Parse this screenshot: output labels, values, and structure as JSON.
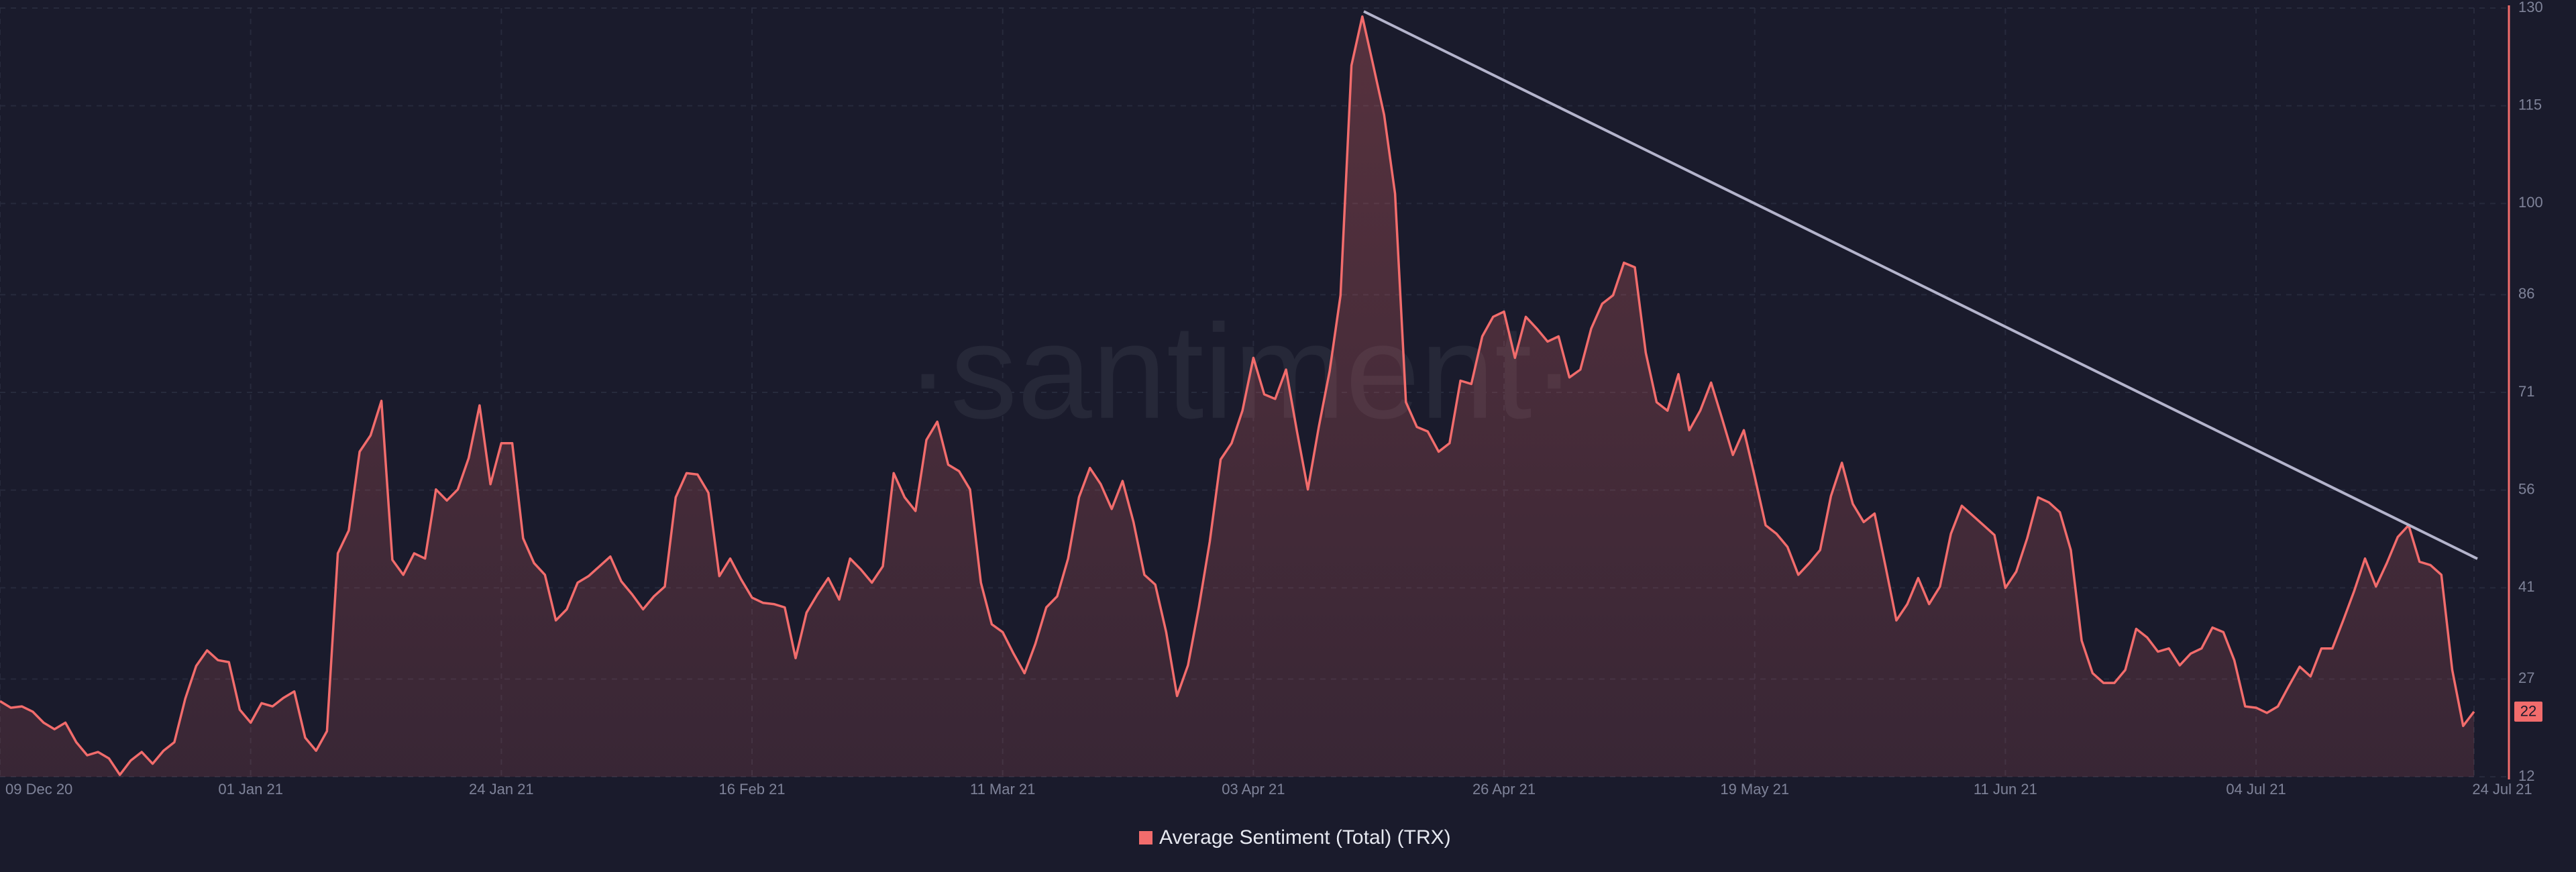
{
  "chart_data": {
    "type": "area",
    "watermark": "·santiment·",
    "categories": [
      "09 Dec 20",
      null,
      null,
      null,
      null,
      null,
      null,
      null,
      null,
      null,
      null,
      null,
      null,
      null,
      null,
      null,
      null,
      null,
      null,
      null,
      null,
      null,
      null,
      "01 Jan 21",
      null,
      null,
      null,
      null,
      null,
      null,
      null,
      null,
      null,
      null,
      null,
      null,
      null,
      null,
      null,
      null,
      null,
      null,
      null,
      null,
      null,
      null,
      "24 Jan 21",
      null,
      null,
      null,
      null,
      null,
      null,
      null,
      null,
      null,
      null,
      null,
      null,
      null,
      null,
      null,
      null,
      null,
      null,
      null,
      null,
      null,
      null,
      "16 Feb 21",
      null,
      null,
      null,
      null,
      null,
      null,
      null,
      null,
      null,
      null,
      null,
      null,
      null,
      null,
      null,
      null,
      null,
      null,
      null,
      null,
      null,
      null,
      "11 Mar 21",
      null,
      null,
      null,
      null,
      null,
      null,
      null,
      null,
      null,
      null,
      null,
      null,
      null,
      null,
      null,
      null,
      null,
      null,
      null,
      null,
      null,
      null,
      "03 Apr 21",
      null,
      null,
      null,
      null,
      null,
      null,
      null,
      null,
      null,
      null,
      null,
      null,
      null,
      null,
      null,
      null,
      null,
      null,
      null,
      null,
      null,
      null,
      "26 Apr 21",
      null,
      null,
      null,
      null,
      null,
      null,
      null,
      null,
      null,
      null,
      null,
      null,
      null,
      null,
      null,
      null,
      null,
      null,
      null,
      null,
      null,
      null,
      "19 May 21",
      null,
      null,
      null,
      null,
      null,
      null,
      null,
      null,
      null,
      null,
      null,
      null,
      null,
      null,
      null,
      null,
      null,
      null,
      null,
      null,
      null,
      null,
      "11 Jun 21",
      null,
      null,
      null,
      null,
      null,
      null,
      null,
      null,
      null,
      null,
      null,
      null,
      null,
      null,
      null,
      null,
      null,
      null,
      null,
      null,
      null,
      null,
      "04 Jul 21",
      null,
      null,
      null,
      null,
      null,
      null,
      null,
      null,
      null,
      null,
      null,
      null,
      null,
      null,
      null,
      null,
      null,
      null,
      null,
      "24 Jul 21"
    ],
    "series": [
      {
        "name": "Average Sentiment (Total) (TRX)",
        "color": "#f26c6c",
        "axis": "y2",
        "values": [
          23.6,
          22.6,
          22.8,
          22,
          20.3,
          19.3,
          20.3,
          17.3,
          15.3,
          15.8,
          14.8,
          12.3,
          14.5,
          15.8,
          14,
          16,
          17.3,
          24,
          29,
          31.4,
          29.9,
          29.6,
          22.3,
          20.3,
          23.3,
          22.8,
          24.1,
          25.1,
          18,
          16,
          19,
          46.3,
          49.8,
          61.9,
          64.4,
          69.7,
          45.3,
          43,
          46.3,
          45.5,
          56.1,
          54.4,
          56.1,
          60.9,
          69,
          56.9,
          63.2,
          63.2,
          48.6,
          44.8,
          43,
          36,
          37.7,
          41.8,
          42.8,
          44.3,
          45.8,
          42,
          40,
          37.7,
          39.7,
          41.2,
          54.9,
          58.6,
          58.4,
          55.6,
          42.8,
          45.5,
          42.3,
          39.5,
          38.7,
          38.5,
          38,
          30.2,
          37.2,
          40,
          42.5,
          39.2,
          45.5,
          43.8,
          41.8,
          44.3,
          58.6,
          54.9,
          52.8,
          63.7,
          66.5,
          59.9,
          58.9,
          56.1,
          41.8,
          35.4,
          34.2,
          30.9,
          27.9,
          32.4,
          38,
          39.7,
          45.5,
          54.9,
          59.4,
          56.9,
          53.1,
          57.4,
          51.1,
          43,
          41.5,
          34.2,
          24.4,
          29.1,
          38,
          48.1,
          60.7,
          63.2,
          68.2,
          76.3,
          70.7,
          70,
          74.5,
          65,
          56.1,
          65.7,
          74.3,
          85.9,
          121.2,
          128.7,
          121.2,
          113.6,
          101.5,
          69.5,
          65.7,
          65,
          61.9,
          63.2,
          72.8,
          72.3,
          79.6,
          82.6,
          83.4,
          76.3,
          82.6,
          80.8,
          78.8,
          79.6,
          73.3,
          74.5,
          80.8,
          84.6,
          85.9,
          90.9,
          90.2,
          77.1,
          69.5,
          68.2,
          73.8,
          65.2,
          68.2,
          72.5,
          67,
          61.4,
          65.2,
          58.1,
          50.6,
          49.3,
          47.3,
          43,
          44.8,
          46.8,
          55.1,
          60.2,
          53.9,
          51.1,
          52.4,
          44.3,
          36,
          38.5,
          42.5,
          38.5,
          41.2,
          49.3,
          53.6,
          52.1,
          50.6,
          49.1,
          41,
          43.5,
          48.6,
          54.9,
          54.1,
          52.6,
          46.8,
          32.9,
          27.9,
          26.4,
          26.4,
          28.4,
          34.7,
          33.4,
          31.2,
          31.7,
          29.1,
          30.9,
          31.7,
          34.9,
          34.2,
          29.9,
          22.8,
          22.6,
          21.8,
          22.8,
          25.9,
          28.9,
          27.4,
          31.7,
          31.7,
          36,
          40.5,
          45.5,
          41.2,
          44.8,
          48.8,
          50.6,
          45,
          44.5,
          43,
          28.4,
          19.8,
          22
        ]
      }
    ],
    "y2lim": [
      12,
      130
    ],
    "y2ticks": [
      12,
      27,
      41,
      56,
      71,
      86,
      100,
      115,
      130
    ],
    "grid": true
  }
}
